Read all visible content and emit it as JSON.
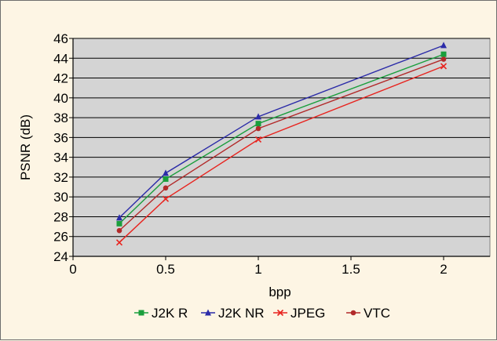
{
  "chart_data": {
    "type": "line",
    "title": "",
    "xlabel": "bpp",
    "ylabel": "PSNR (dB)",
    "xlim": [
      0,
      2.25
    ],
    "ylim": [
      24,
      46
    ],
    "xticks": [
      0,
      0.5,
      1,
      1.5,
      2
    ],
    "xtick_labels": [
      "0",
      "0.5",
      "1",
      "1.5",
      "2"
    ],
    "yticks": [
      24,
      26,
      28,
      30,
      32,
      34,
      36,
      38,
      40,
      42,
      44,
      46
    ],
    "ytick_labels": [
      "24",
      "26",
      "28",
      "30",
      "32",
      "34",
      "36",
      "38",
      "40",
      "42",
      "44",
      "46"
    ],
    "grid": "horizontal",
    "plot_background": "#d4d4d4",
    "legend_position": "bottom",
    "series": [
      {
        "name": "J2K R",
        "color": "#1a9e3c",
        "marker": "square",
        "x": [
          0.25,
          0.5,
          1,
          2
        ],
        "y": [
          27.3,
          31.8,
          37.4,
          44.4
        ]
      },
      {
        "name": "J2K NR",
        "color": "#2b2ba8",
        "marker": "triangle",
        "x": [
          0.25,
          0.5,
          1,
          2
        ],
        "y": [
          27.9,
          32.4,
          38.1,
          45.3
        ]
      },
      {
        "name": "JPEG",
        "color": "#e8231e",
        "marker": "cross",
        "x": [
          0.25,
          0.5,
          1,
          2
        ],
        "y": [
          25.4,
          29.8,
          35.8,
          43.2
        ]
      },
      {
        "name": "VTC",
        "color": "#b22a2a",
        "marker": "circle",
        "x": [
          0.25,
          0.5,
          1,
          2
        ],
        "y": [
          26.6,
          30.9,
          36.9,
          43.9
        ]
      }
    ]
  }
}
